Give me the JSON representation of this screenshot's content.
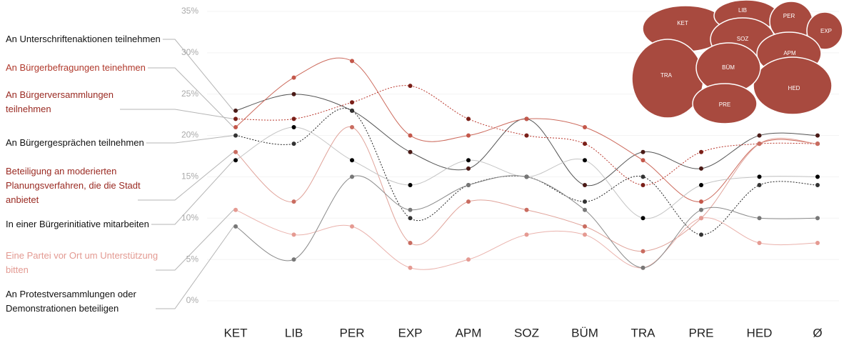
{
  "chart_data": {
    "type": "line",
    "categories": [
      "KET",
      "LIB",
      "PER",
      "EXP",
      "APM",
      "SOZ",
      "BÜM",
      "TRA",
      "PRE",
      "HED",
      "Ø"
    ],
    "ylim": [
      0,
      35
    ],
    "yticks": [
      {
        "value": 0,
        "label": "0%"
      },
      {
        "value": 5,
        "label": "5%"
      },
      {
        "value": 10,
        "label": "10%"
      },
      {
        "value": 15,
        "label": "15%"
      },
      {
        "value": 20,
        "label": "20%"
      },
      {
        "value": 25,
        "label": "25%"
      },
      {
        "value": 30,
        "label": "30%"
      },
      {
        "value": 35,
        "label": "35%"
      }
    ],
    "grid": true,
    "series": [
      {
        "name": "An Unterschriftenaktionen teilnehmen",
        "color": "#555555",
        "marker_color": "#4a1a16",
        "text_color": "#111111",
        "style": "solid",
        "values": [
          23,
          25,
          23,
          18,
          16,
          22,
          14,
          18,
          16,
          20,
          20
        ]
      },
      {
        "name": "An Bürgerbefragungen teinehmen",
        "color": "#cc6a5c",
        "marker_color": "#c4574a",
        "text_color": "#b0392c",
        "style": "solid",
        "values": [
          21,
          27,
          29,
          20,
          20,
          22,
          21,
          17,
          12,
          19,
          19
        ]
      },
      {
        "name": "An Bürgerversammlungen teilnehmen",
        "color": "#b8352a",
        "marker_color": "#7a1f18",
        "text_color": "#9a2a22",
        "style": "dotted",
        "values": [
          22,
          22,
          24,
          26,
          22,
          20,
          19,
          14,
          18,
          19,
          19
        ]
      },
      {
        "name": "An Bürgergesprächen teilnehmen",
        "color": "#222222",
        "marker_color": "#333333",
        "text_color": "#111111",
        "style": "dotted",
        "values": [
          20,
          19,
          23,
          10,
          14,
          15,
          12,
          15,
          8,
          14,
          14
        ]
      },
      {
        "name": "Beteiligung an moderierten Planungsverfahren, die die Stadt anbietet",
        "color": "#e0a39a",
        "marker_color": "#c96c60",
        "text_color": "#9a2a22",
        "style": "solid",
        "values": [
          18,
          12,
          21,
          7,
          12,
          11,
          9,
          6,
          10,
          19,
          19
        ]
      },
      {
        "name": "In einer Bürgerinitiative mitarbeiten",
        "color": "#c4c4c4",
        "marker_color": "#000000",
        "text_color": "#111111",
        "style": "solid",
        "values": [
          17,
          21,
          17,
          14,
          17,
          15,
          17,
          10,
          14,
          15,
          15
        ]
      },
      {
        "name": "Eine Partei vor Ort um Unterstützung bitten",
        "color": "#eab2ac",
        "marker_color": "#e59a92",
        "text_color": "#e39a92",
        "style": "solid",
        "values": [
          11,
          8,
          9,
          4,
          5,
          8,
          8,
          4,
          10,
          7,
          7
        ]
      },
      {
        "name": "An Protestversammlungen oder Demonstrationen beteiligen",
        "color": "#8a8a8a",
        "marker_color": "#777777",
        "text_color": "#111111",
        "style": "solid",
        "values": [
          9,
          5,
          15,
          11,
          14,
          15,
          11,
          4,
          11,
          10,
          10
        ]
      }
    ]
  }
}
